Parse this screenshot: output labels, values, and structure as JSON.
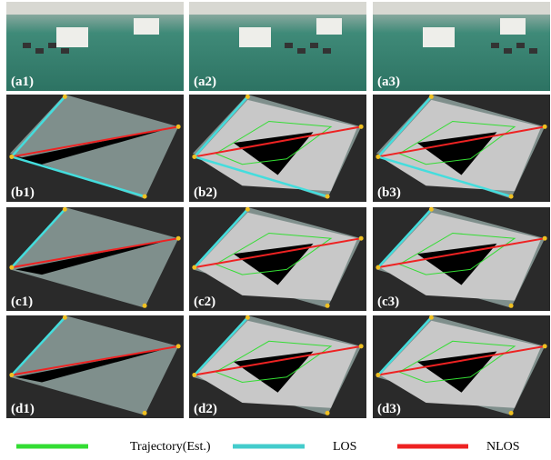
{
  "rows": [
    [
      "(a1)",
      "(a2)",
      "(a3)"
    ],
    [
      "(b1)",
      "(b2)",
      "(b3)"
    ],
    [
      "(c1)",
      "(c2)",
      "(c3)"
    ],
    [
      "(d1)",
      "(d2)",
      "(d3)"
    ]
  ],
  "legend": [
    {
      "label": "Trajectory(Est.)"
    },
    {
      "label": "LOS"
    },
    {
      "label": "NLOS"
    }
  ]
}
